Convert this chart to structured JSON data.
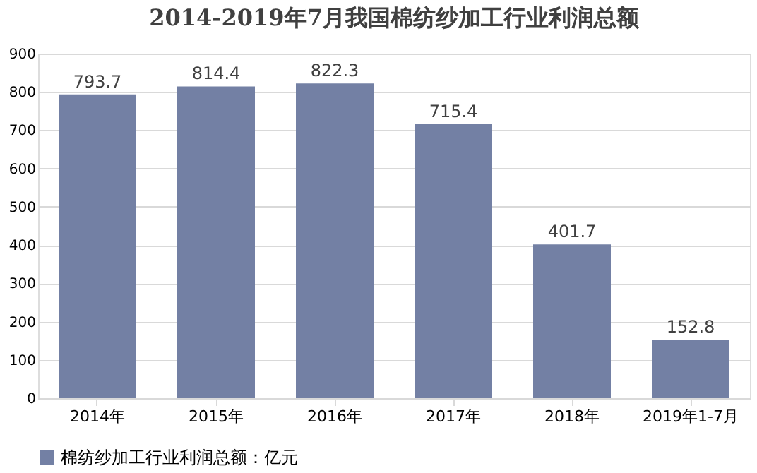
{
  "chart_data": {
    "type": "bar",
    "title": "2014-2019年7月我国棉纺纱加工行业利润总额",
    "categories": [
      "2014年",
      "2015年",
      "2016年",
      "2017年",
      "2018年",
      "2019年1-7月"
    ],
    "series": [
      {
        "name": "棉纺纱加工行业利润总额：亿元",
        "color": "#7380a4",
        "values": [
          793.7,
          814.4,
          822.3,
          715.4,
          401.7,
          152.8
        ]
      }
    ],
    "ylim": [
      0,
      900
    ],
    "yticks": [
      0,
      100,
      200,
      300,
      400,
      500,
      600,
      700,
      800,
      900
    ],
    "grid": "y",
    "legend": "bottom",
    "data_labels": true
  }
}
